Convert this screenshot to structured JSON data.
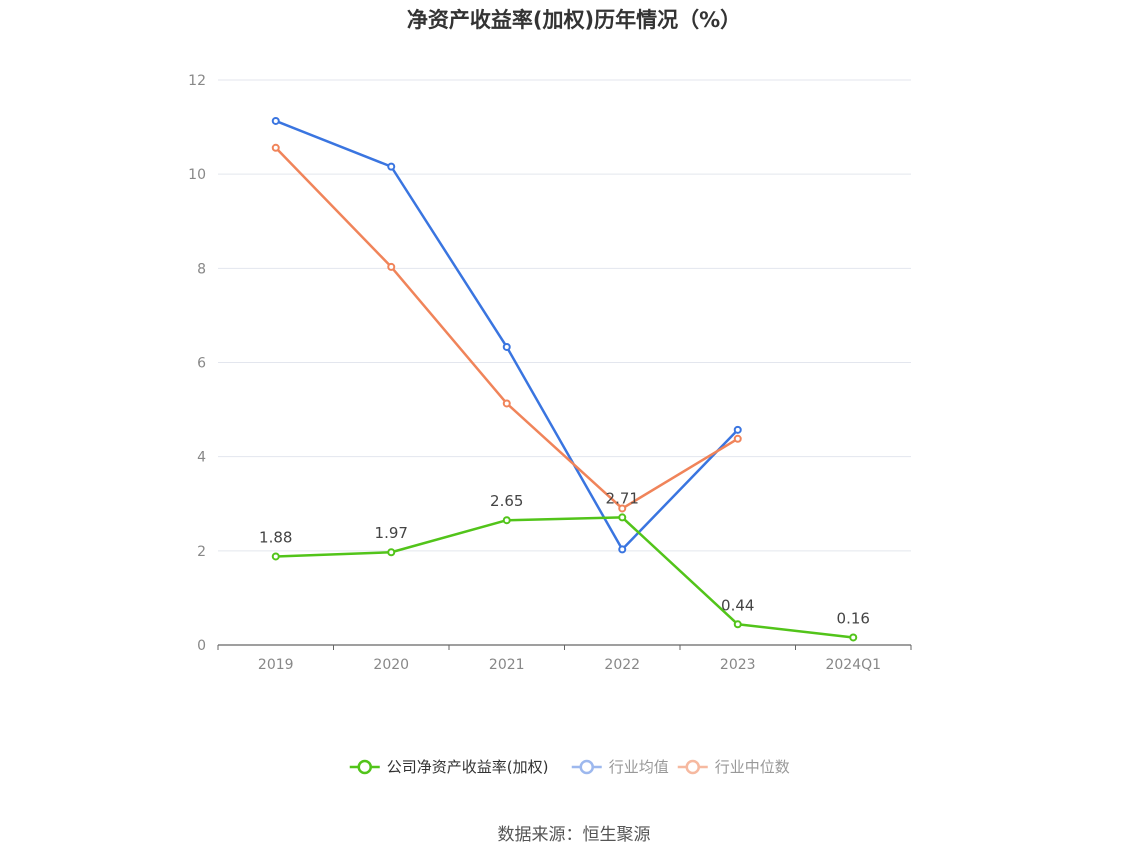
{
  "title": "净资产收益率(加权)历年情况（%）",
  "source": "数据来源：恒生聚源",
  "chart_data": {
    "type": "line",
    "title": "净资产收益率(加权)历年情况（%）",
    "categories": [
      "2019",
      "2020",
      "2021",
      "2022",
      "2023",
      "2024Q1"
    ],
    "ylim": [
      0,
      12
    ],
    "yticks": [
      0,
      2,
      4,
      6,
      8,
      10,
      12
    ],
    "grid": true,
    "legend_position": "bottom",
    "series": [
      {
        "name": "公司净资产收益率(加权)",
        "color": "#52c41a",
        "values": [
          1.88,
          1.97,
          2.65,
          2.71,
          0.44,
          0.16
        ],
        "labels": [
          "1.88",
          "1.97",
          "2.65",
          "2.71",
          "0.44",
          "0.16"
        ],
        "show_labels": true
      },
      {
        "name": "行业均值",
        "color": "#3a75e0",
        "legend_color": "#9db8ee",
        "values": [
          11.13,
          10.16,
          6.33,
          2.03,
          4.57,
          null
        ],
        "show_labels": false
      },
      {
        "name": "行业中位数",
        "color": "#f0845a",
        "legend_color": "#f6b9a0",
        "values": [
          10.56,
          8.03,
          5.13,
          2.9,
          4.38,
          null
        ],
        "show_labels": false
      }
    ]
  }
}
